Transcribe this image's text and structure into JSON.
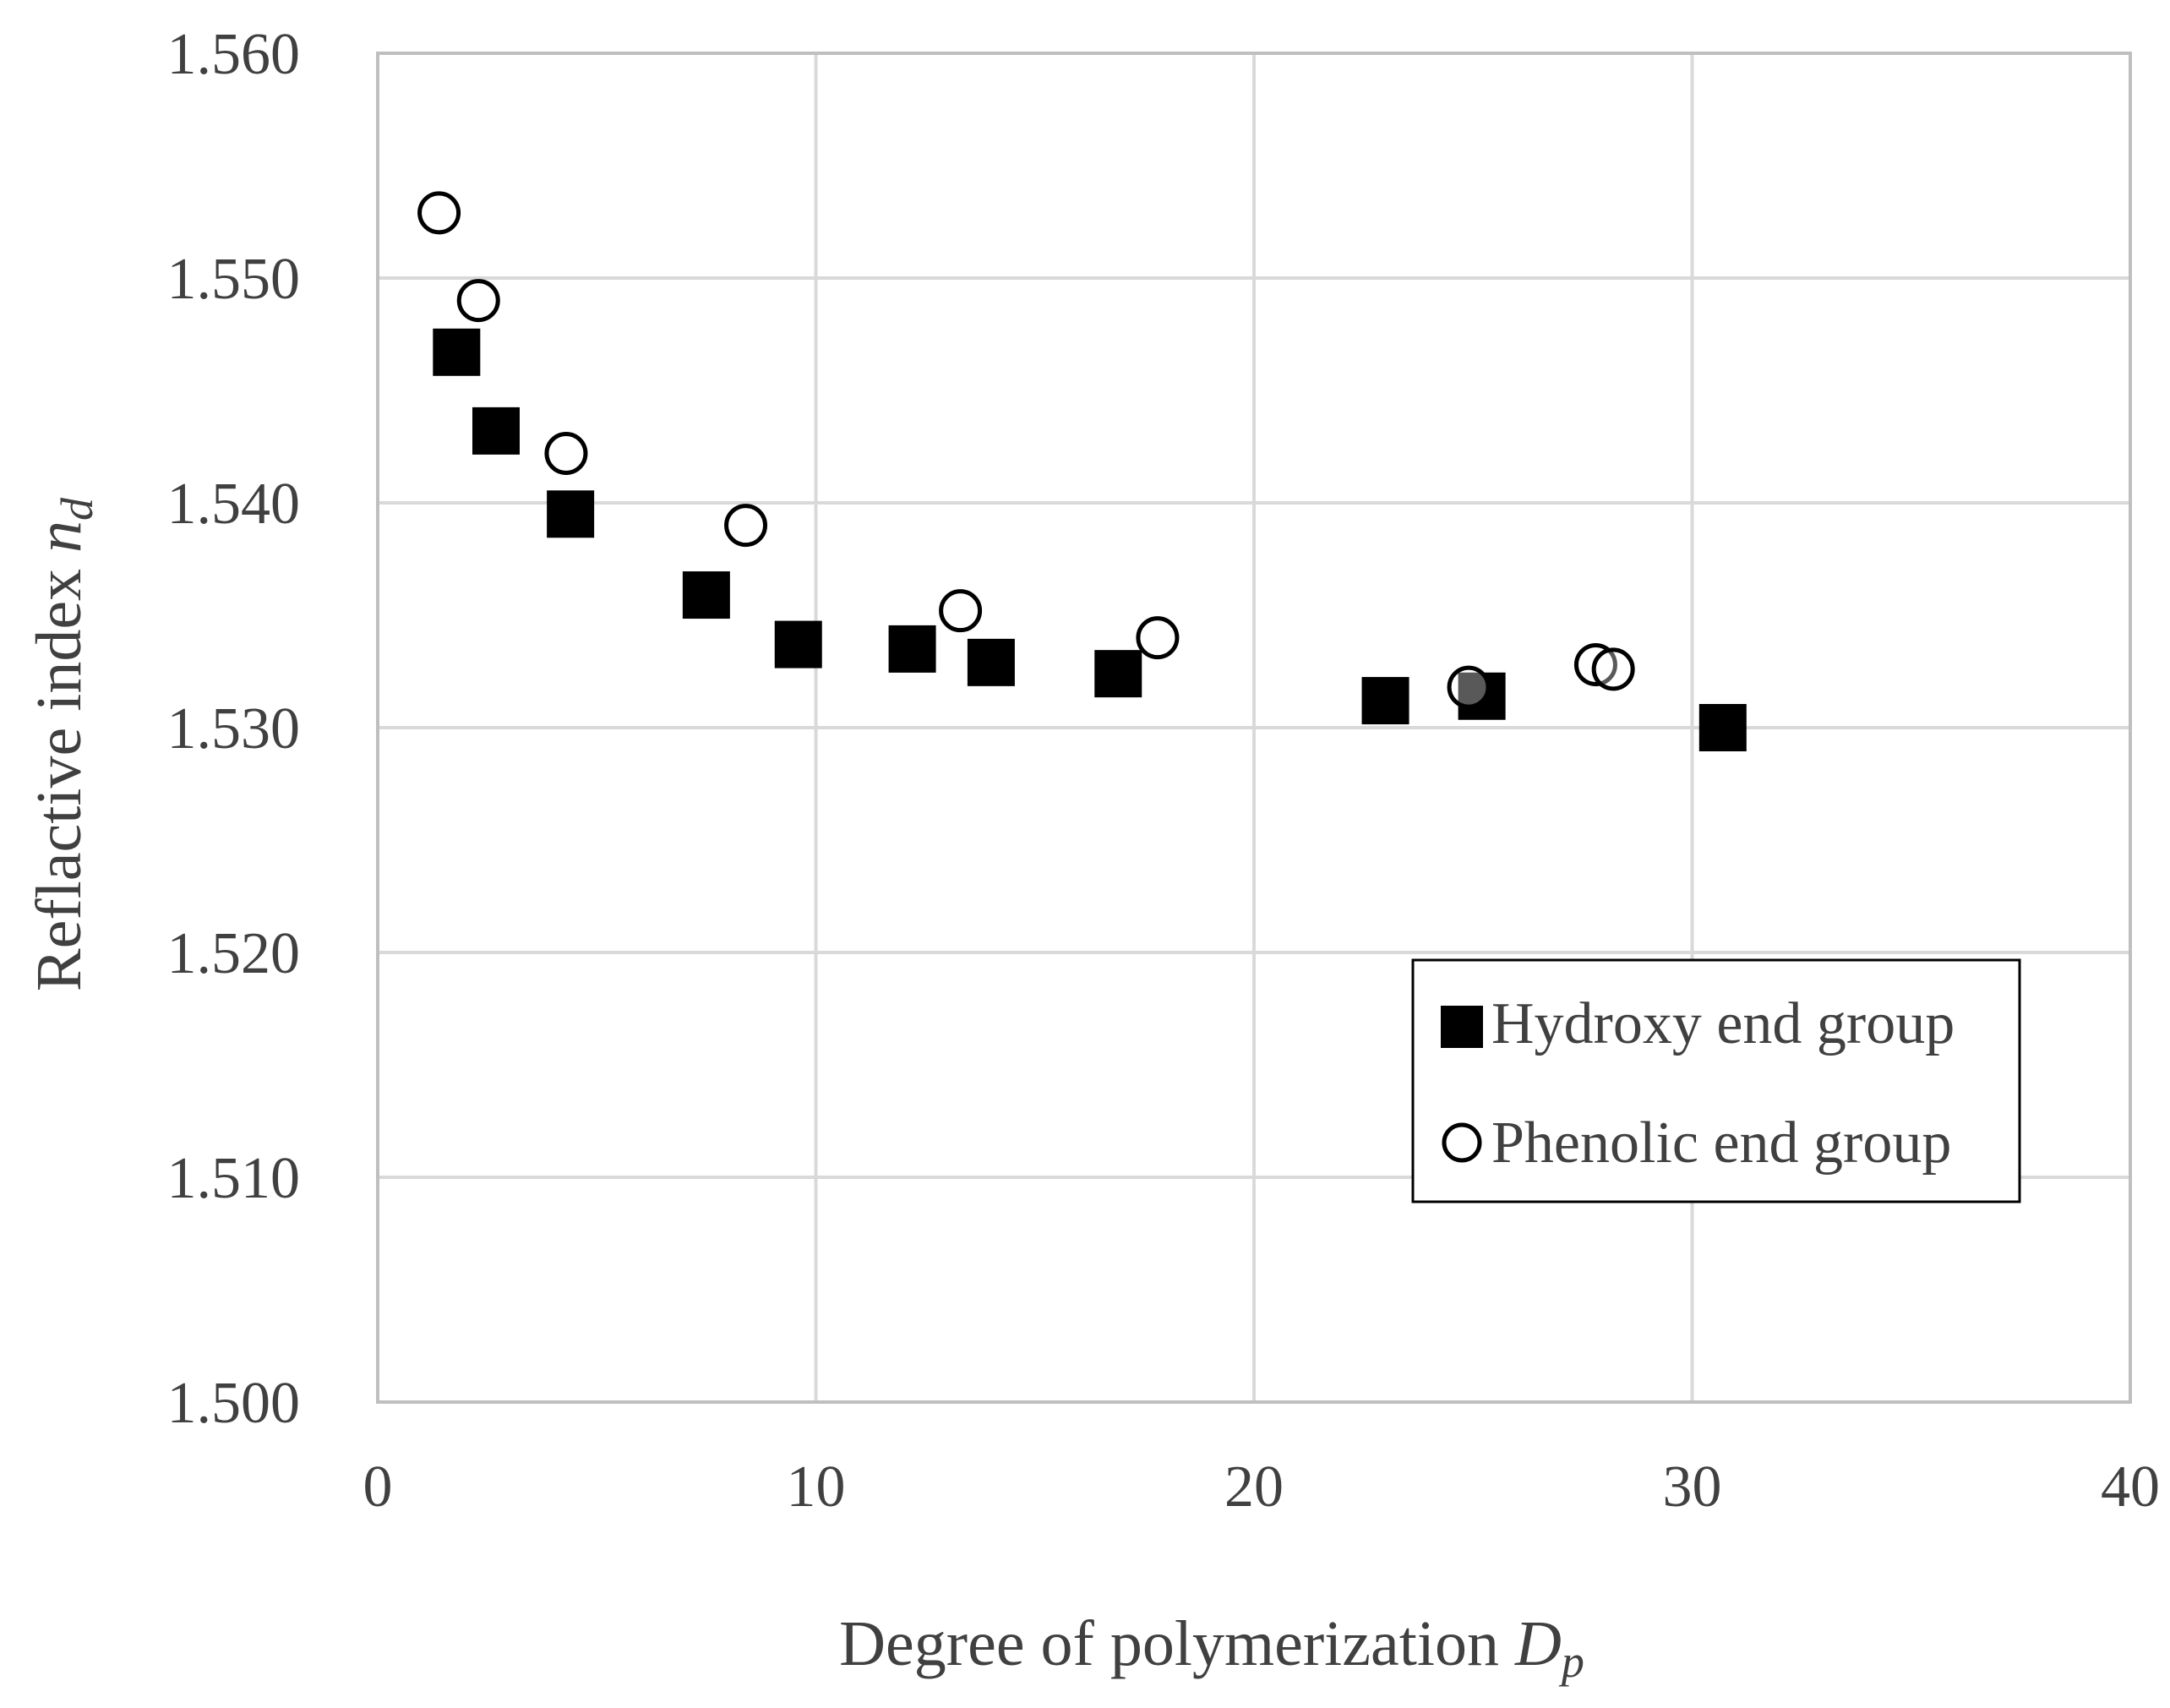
{
  "chart_data": {
    "type": "scatter",
    "title": "",
    "xlabel": {
      "main": "Degree of polymerization ",
      "italic": "D",
      "sub": "p"
    },
    "ylabel": {
      "main": "Reflactive index ",
      "italic": "n",
      "sub": "d"
    },
    "xlim": [
      0,
      40
    ],
    "ylim": [
      1.5,
      1.56
    ],
    "x_ticks": [
      0,
      10,
      20,
      30,
      40
    ],
    "x_tick_labels": [
      "0",
      "10",
      "20",
      "30",
      "40"
    ],
    "y_ticks": [
      1.5,
      1.51,
      1.52,
      1.53,
      1.54,
      1.55,
      1.56
    ],
    "y_tick_labels": [
      "1.500",
      "1.510",
      "1.520",
      "1.530",
      "1.540",
      "1.550",
      "1.560"
    ],
    "grid": true,
    "legend_position": "right",
    "series": [
      {
        "name": "Hydroxy end group",
        "marker": "filled-square",
        "color": "#000000",
        "points": [
          {
            "x": 1.8,
            "y": 1.5467
          },
          {
            "x": 2.7,
            "y": 1.5432
          },
          {
            "x": 4.4,
            "y": 1.5395
          },
          {
            "x": 7.5,
            "y": 1.5359
          },
          {
            "x": 9.6,
            "y": 1.5337
          },
          {
            "x": 12.2,
            "y": 1.5335
          },
          {
            "x": 14.0,
            "y": 1.5329
          },
          {
            "x": 16.9,
            "y": 1.5324
          },
          {
            "x": 23.0,
            "y": 1.5312
          },
          {
            "x": 25.2,
            "y": 1.5314
          },
          {
            "x": 30.7,
            "y": 1.53
          }
        ]
      },
      {
        "name": "Phenolic end group",
        "marker": "open-circle",
        "color": "#000000",
        "points": [
          {
            "x": 1.4,
            "y": 1.5529
          },
          {
            "x": 2.3,
            "y": 1.549
          },
          {
            "x": 4.3,
            "y": 1.5422
          },
          {
            "x": 8.4,
            "y": 1.539
          },
          {
            "x": 13.3,
            "y": 1.5352
          },
          {
            "x": 17.8,
            "y": 1.534
          },
          {
            "x": 24.9,
            "y": 1.5318
          },
          {
            "x": 27.8,
            "y": 1.5328
          },
          {
            "x": 28.2,
            "y": 1.5326
          }
        ]
      }
    ]
  }
}
